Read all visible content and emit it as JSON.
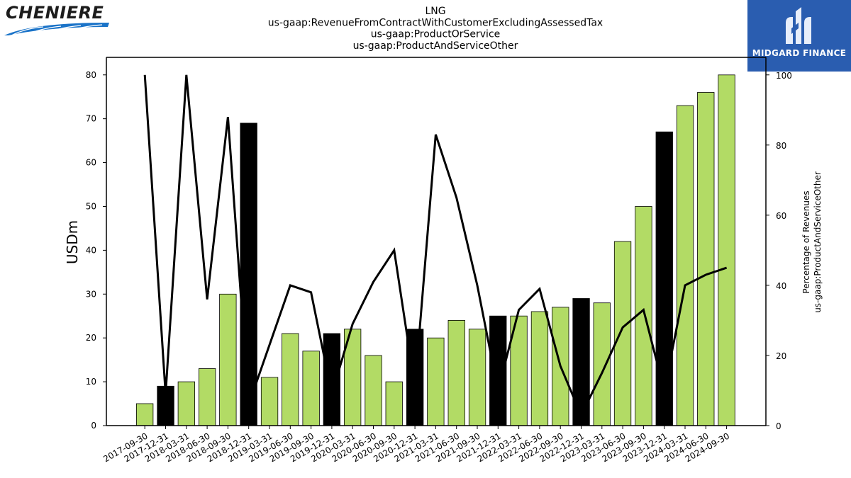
{
  "logos": {
    "left_text": "CHENIERE",
    "right_text": "MIDGARD FINANCE"
  },
  "colors": {
    "bar_default": "#b2db65",
    "bar_highlight": "#000000",
    "line": "#000000",
    "logo_right_bg": "#2a5db0",
    "logo_left_swoosh": "#1a73c8"
  },
  "chart_data": {
    "type": "bar",
    "title_lines": [
      "LNG",
      "us-gaap:RevenueFromContractWithCustomerExcludingAssessedTax",
      "us-gaap:ProductOrService",
      "us-gaap:ProductAndServiceOther"
    ],
    "ylabel": "USDm",
    "ylabel_right": [
      "Percentage of Revenues",
      "us-gaap:ProductAndServiceOther"
    ],
    "ylim": [
      0,
      84
    ],
    "ylim_right": [
      0,
      105
    ],
    "yticks": [
      0,
      10,
      20,
      30,
      40,
      50,
      60,
      70,
      80
    ],
    "yticks_right": [
      0,
      20,
      40,
      60,
      80,
      100
    ],
    "categories": [
      "2017-09-30",
      "2017-12-31",
      "2018-03-31",
      "2018-06-30",
      "2018-09-30",
      "2018-12-31",
      "2019-03-31",
      "2019-06-30",
      "2019-09-30",
      "2019-12-31",
      "2020-03-31",
      "2020-06-30",
      "2020-09-30",
      "2020-12-31",
      "2021-03-31",
      "2021-06-30",
      "2021-09-30",
      "2021-12-31",
      "2022-03-31",
      "2022-06-30",
      "2022-09-30",
      "2022-12-31",
      "2023-03-31",
      "2023-06-30",
      "2023-09-30",
      "2023-12-31",
      "2024-03-31",
      "2024-06-30",
      "2024-09-30"
    ],
    "series": [
      {
        "type": "bar",
        "axis": "left",
        "values": [
          5,
          9,
          10,
          13,
          30,
          69,
          11,
          21,
          17,
          21,
          22,
          16,
          10,
          22,
          20,
          24,
          22,
          25,
          25,
          26,
          27,
          29,
          28,
          42,
          50,
          67,
          73,
          76,
          80
        ],
        "highlight": [
          false,
          true,
          false,
          false,
          false,
          true,
          false,
          false,
          false,
          true,
          false,
          false,
          false,
          true,
          false,
          false,
          false,
          true,
          false,
          false,
          false,
          true,
          false,
          false,
          false,
          true,
          false,
          false,
          false
        ]
      },
      {
        "type": "line",
        "axis": "right",
        "values": [
          100,
          9,
          100,
          36,
          88,
          6,
          23,
          40,
          38,
          9,
          29,
          41,
          50,
          11,
          83,
          65,
          40,
          10,
          33,
          39,
          17,
          3,
          15,
          28,
          33,
          10,
          40,
          43,
          45
        ]
      }
    ]
  }
}
